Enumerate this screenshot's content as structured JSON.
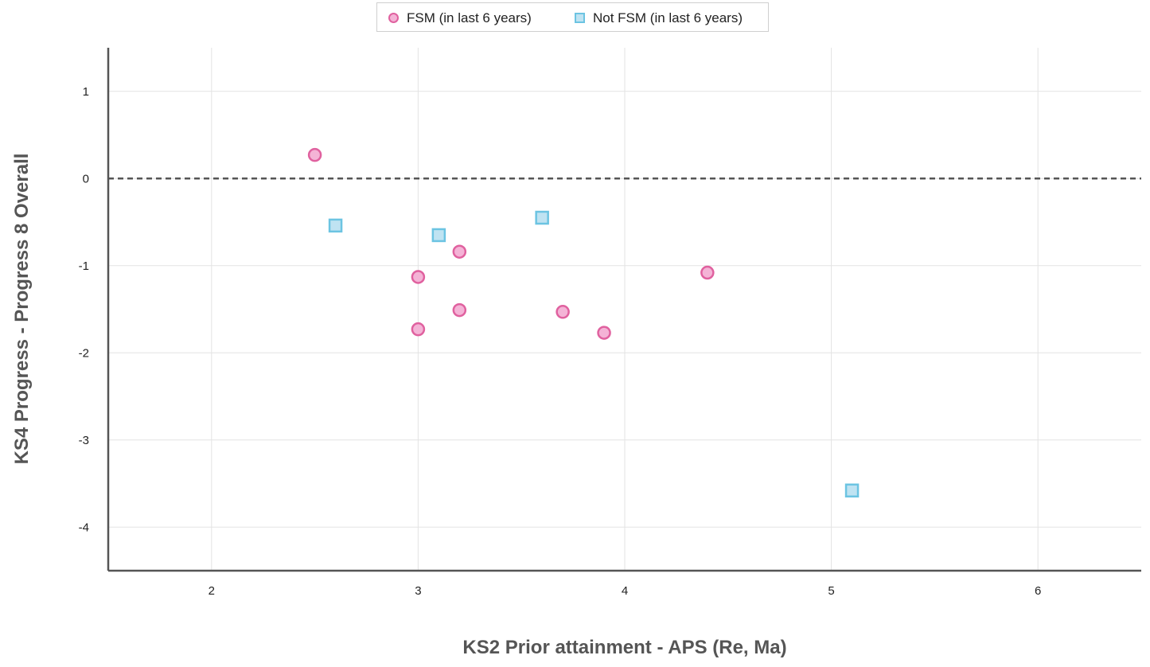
{
  "colors": {
    "fsm_fill": "#f4b3d6",
    "fsm_stroke": "#e0619f",
    "not_fsm_fill": "#bfe3f2",
    "not_fsm_stroke": "#6cc4e2",
    "grid": "#e3e3e3",
    "axis": "#555555",
    "reference_line": "#555555"
  },
  "chart_data": {
    "type": "scatter",
    "title": "",
    "xlabel": "KS2 Prior attainment - APS (Re, Ma)",
    "ylabel": "KS4 Progress - Progress 8 Overall",
    "xlim": [
      1.5,
      6.5
    ],
    "ylim": [
      -4.5,
      1.5
    ],
    "xticks": [
      2,
      3,
      4,
      5,
      6
    ],
    "yticks": [
      1,
      0,
      -1,
      -2,
      -3,
      -4
    ],
    "grid": true,
    "legend_position": "top-center",
    "reference_line_y": 0,
    "series": [
      {
        "name": "FSM (in last 6 years)",
        "marker": "circle",
        "points": [
          {
            "x": 2.5,
            "y": 0.27
          },
          {
            "x": 3.0,
            "y": -1.13
          },
          {
            "x": 3.0,
            "y": -1.73
          },
          {
            "x": 3.2,
            "y": -0.84
          },
          {
            "x": 3.2,
            "y": -1.51
          },
          {
            "x": 3.7,
            "y": -1.53
          },
          {
            "x": 3.9,
            "y": -1.77
          },
          {
            "x": 4.4,
            "y": -1.08
          }
        ]
      },
      {
        "name": "Not FSM (in last 6 years)",
        "marker": "square",
        "points": [
          {
            "x": 2.6,
            "y": -0.54
          },
          {
            "x": 3.1,
            "y": -0.65
          },
          {
            "x": 3.6,
            "y": -0.45
          },
          {
            "x": 5.1,
            "y": -3.58
          }
        ]
      }
    ]
  }
}
